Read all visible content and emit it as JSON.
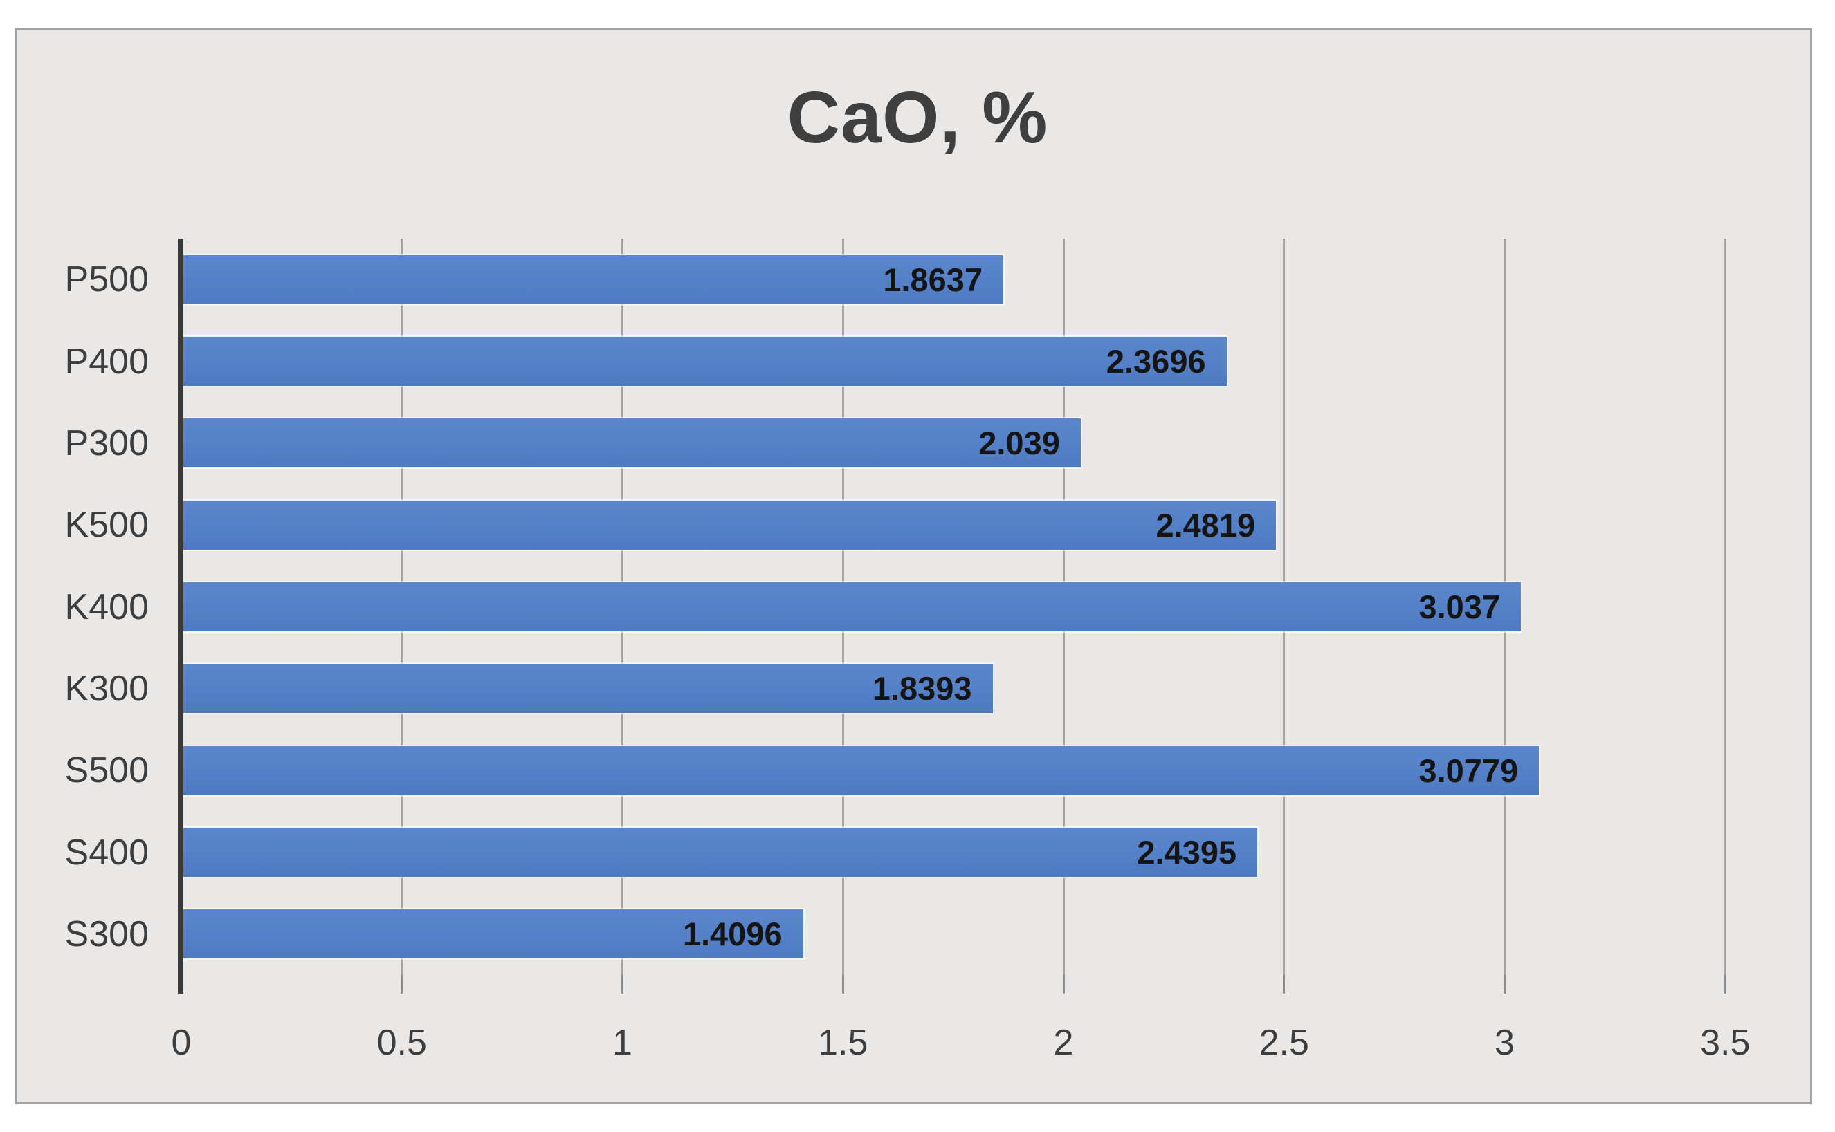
{
  "chart_data": {
    "type": "bar",
    "orientation": "horizontal",
    "title": "CaO, %",
    "categories": [
      "P500",
      "P400",
      "P300",
      "K500",
      "K400",
      "K300",
      "S500",
      "S400",
      "S300"
    ],
    "values": [
      1.8637,
      2.3696,
      2.039,
      2.4819,
      3.037,
      1.8393,
      3.0779,
      2.4395,
      1.4096
    ],
    "value_labels": [
      "1.8637",
      "2.3696",
      "2.039",
      "2.4819",
      "3.037",
      "1.8393",
      "3.0779",
      "2.4395",
      "1.4096"
    ],
    "xlim": [
      0,
      3.5
    ],
    "x_ticks": [
      0,
      0.5,
      1,
      1.5,
      2,
      2.5,
      3,
      3.5
    ],
    "x_tick_labels": [
      "0",
      "0.5",
      "1",
      "1.5",
      "2",
      "2.5",
      "3",
      "3.5"
    ],
    "grid": "vertical",
    "legend": false,
    "data_label_position": "inside-end",
    "colors": {
      "bar": "#5480C7",
      "gridline": "#a3a2a0",
      "axis_line": "#3a3a3a",
      "tick": "#8c8c8c",
      "title_text": "#3f3f3f",
      "axis_text": "#3d3d3d",
      "data_label_text": "#151515",
      "frame_border": "#a4a4a4"
    }
  }
}
